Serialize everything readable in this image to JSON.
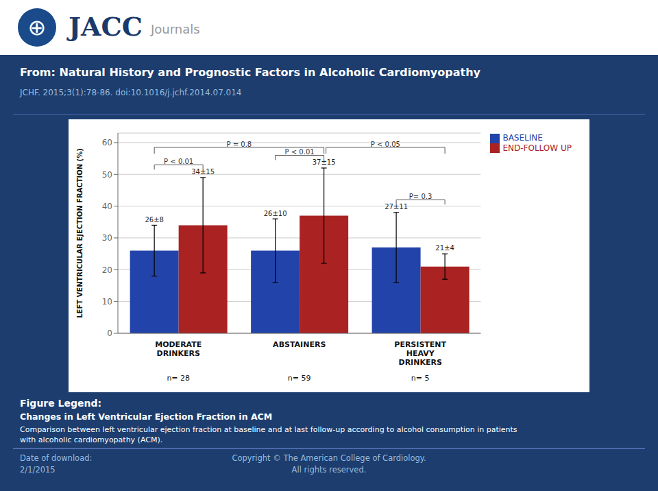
{
  "chart_data": {
    "type": "bar",
    "title": "From: Natural History and Prognostic Factors in Alcoholic Cardiomyopathy",
    "subtitle": "JCHF. 2015;3(1):78-86. doi:10.1016/j.jchf.2014.07.014",
    "header": [
      "⊕",
      "JACC",
      "Journals"
    ],
    "categories": [
      "MODERATE\nDRINKERS",
      "ABSTAINERS",
      "PERSISTENT\nHEAVY\nDRINKERS"
    ],
    "n_labels": [
      "n= 28",
      "n= 59",
      "n= 5"
    ],
    "series": [
      {
        "name": "BASELINE",
        "color": "#2244aa",
        "values": [
          26,
          26,
          27
        ],
        "errors": [
          8,
          10,
          11
        ],
        "value_labels": [
          "26±8",
          "26±10",
          "27±11"
        ]
      },
      {
        "name": "END-FOLLOW UP",
        "color": "#aa2222",
        "values": [
          34,
          37,
          21
        ],
        "errors": [
          15,
          15,
          4
        ],
        "value_labels": [
          "34±15",
          "37±15",
          "21±4"
        ]
      }
    ],
    "p_within": [
      "P < 0.01",
      "P < 0.01",
      "P= 0.3"
    ],
    "p_between": [
      {
        "label": "P = 0.8",
        "categories": [
          "MODERATE\nDRINKERS",
          "ABSTAINERS"
        ]
      },
      {
        "label": "P < 0.05",
        "categories": [
          "ABSTAINERS",
          "PERSISTENT\nHEAVY\nDRINKERS"
        ]
      }
    ],
    "ylabel": "LEFT VENTRICULAR EJECTION FRACTION (%)",
    "ylim": [
      0,
      63
    ],
    "yticks": [
      0,
      10,
      20,
      30,
      40,
      50,
      60
    ],
    "grid": true,
    "legend": "upper right",
    "data_labels": true,
    "figure_legend": {
      "title": "Figure Legend:",
      "heading": "Changes in Left Ventricular Ejection Fraction in ACM",
      "text": "Comparison between left ventricular ejection fraction at baseline and at last follow-up according to alcohol consumption in patients\nwith alcoholic cardiomyopathy (ACM)."
    },
    "footer": [
      "Date of download:\n2/1/2015",
      "Copyright © The American College of Cardiology.\nAll rights reserved."
    ]
  }
}
